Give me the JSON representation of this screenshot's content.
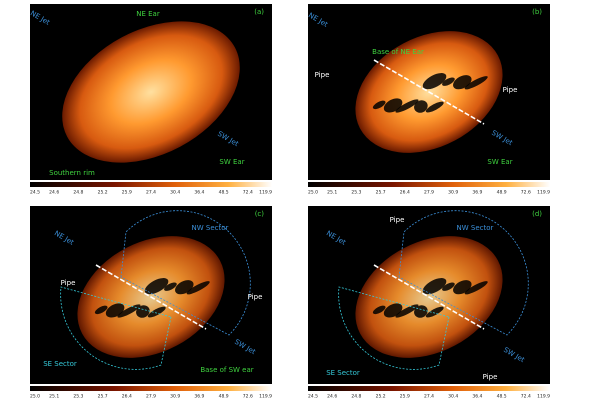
{
  "panels": [
    {
      "label": "(a)",
      "annotations": [
        "NE Ear",
        "NE Jet",
        "SW Jet",
        "SW Ear",
        "Southern rim"
      ],
      "colorbar_ticks": [
        "24.5",
        "24.6",
        "24.8",
        "25.2",
        "25.9",
        "27.4",
        "30.4",
        "36.4",
        "48.5",
        "72.4",
        "119.9"
      ]
    },
    {
      "label": "(b)",
      "annotations": [
        "NE Jet",
        "Base of NE Ear",
        "Pipe",
        "Pipe",
        "SW Jet",
        "SW Ear"
      ],
      "colorbar_ticks": [
        "25.0",
        "25.1",
        "25.3",
        "25.7",
        "26.4",
        "27.9",
        "30.9",
        "36.9",
        "48.9",
        "72.6",
        "119.9"
      ]
    },
    {
      "label": "(c)",
      "annotations": [
        "NW Sector",
        "NE Jet",
        "Pipe",
        "Pipe",
        "SW Jet",
        "Base of SW ear",
        "SE Sector"
      ],
      "colorbar_ticks": [
        "25.0",
        "25.1",
        "25.3",
        "25.7",
        "26.4",
        "27.9",
        "30.9",
        "36.9",
        "48.9",
        "72.6",
        "119.9"
      ]
    },
    {
      "label": "(d)",
      "annotations": [
        "Pipe",
        "NW Sector",
        "NE Jet",
        "SW Jet",
        "Pipe",
        "SE Sector"
      ],
      "colorbar_ticks": [
        "24.5",
        "24.6",
        "24.8",
        "25.2",
        "25.9",
        "27.4",
        "30.4",
        "36.4",
        "48.5",
        "72.4",
        "119.9"
      ]
    }
  ]
}
